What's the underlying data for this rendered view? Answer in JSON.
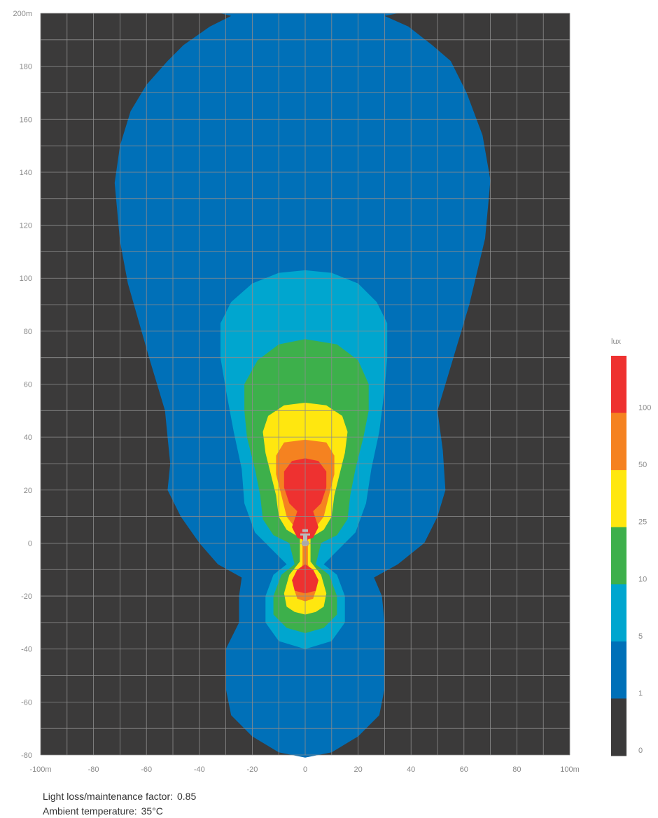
{
  "colors": {
    "background": "#3b3a3a",
    "grid": "#8c8c8c",
    "level_0": "#3b3a3a",
    "level_1": "#0070b8",
    "level_5": "#00a6cf",
    "level_10": "#3db04b",
    "level_25": "#ffe70f",
    "level_50": "#f58220",
    "level_100": "#ee3130",
    "fixture": "#b9b9b9"
  },
  "chart_data": {
    "type": "heatmap",
    "subtype": "isolux contour plot",
    "x_ticks": [
      "-100m",
      "-80",
      "-60",
      "-40",
      "-20",
      "0",
      "20",
      "40",
      "60",
      "80",
      "100m"
    ],
    "y_ticks": [
      "200m",
      "180",
      "160",
      "140",
      "120",
      "100",
      "80",
      "60",
      "40",
      "20",
      "0",
      "-20",
      "-40",
      "-60",
      "-80"
    ],
    "xlim": [
      -100,
      100
    ],
    "ylim": [
      -80,
      200
    ],
    "grid": true,
    "legend": {
      "title": "lux",
      "placement": "right",
      "levels": [
        "0",
        "1",
        "5",
        "10",
        "25",
        "50",
        "100"
      ]
    },
    "contours": [
      {
        "level": 1,
        "points": [
          [
            -32,
            200
          ],
          [
            -28,
            199
          ],
          [
            -36,
            195
          ],
          [
            -46,
            188
          ],
          [
            -52,
            182
          ],
          [
            -60,
            173
          ],
          [
            -66,
            163
          ],
          [
            -70,
            150
          ],
          [
            -72,
            136
          ],
          [
            -70,
            114
          ],
          [
            -67,
            98
          ],
          [
            -59,
            70
          ],
          [
            -53,
            50
          ],
          [
            -52,
            40
          ],
          [
            -51,
            30
          ],
          [
            -52,
            20
          ],
          [
            -47,
            10
          ],
          [
            -40,
            0
          ],
          [
            -33,
            -8
          ],
          [
            -24,
            -13
          ],
          [
            -25,
            -20
          ],
          [
            -25,
            -30
          ],
          [
            -30,
            -40
          ],
          [
            -30,
            -55
          ],
          [
            -28,
            -65
          ],
          [
            -20,
            -73
          ],
          [
            -10,
            -79
          ],
          [
            0,
            -81
          ],
          [
            10,
            -79
          ],
          [
            20,
            -73
          ],
          [
            28,
            -65
          ],
          [
            30,
            -55
          ],
          [
            30,
            -40
          ],
          [
            30,
            -30
          ],
          [
            29,
            -20
          ],
          [
            26,
            -13
          ],
          [
            35,
            -8
          ],
          [
            45,
            0
          ],
          [
            50,
            10
          ],
          [
            53,
            20
          ],
          [
            52,
            35
          ],
          [
            50,
            50
          ],
          [
            56,
            70
          ],
          [
            62,
            90
          ],
          [
            68,
            115
          ],
          [
            70,
            137
          ],
          [
            67,
            154
          ],
          [
            61,
            170
          ],
          [
            55,
            182
          ],
          [
            48,
            188
          ],
          [
            39,
            195
          ],
          [
            30,
            199
          ],
          [
            35,
            200
          ]
        ]
      },
      {
        "level": 5,
        "points": [
          [
            0,
            103
          ],
          [
            -10,
            102
          ],
          [
            -20,
            98
          ],
          [
            -28,
            91
          ],
          [
            -32,
            83
          ],
          [
            -32,
            70
          ],
          [
            -30,
            58
          ],
          [
            -27,
            42
          ],
          [
            -24,
            28
          ],
          [
            -23,
            15
          ],
          [
            -19,
            4
          ],
          [
            -12,
            -3
          ],
          [
            -7,
            -8
          ],
          [
            -12,
            -12
          ],
          [
            -15,
            -20
          ],
          [
            -15,
            -30
          ],
          [
            -10,
            -37
          ],
          [
            0,
            -40
          ],
          [
            10,
            -37
          ],
          [
            15,
            -30
          ],
          [
            15,
            -20
          ],
          [
            12,
            -12
          ],
          [
            7,
            -8
          ],
          [
            12,
            -3
          ],
          [
            19,
            4
          ],
          [
            23,
            15
          ],
          [
            25,
            28
          ],
          [
            28,
            42
          ],
          [
            30,
            58
          ],
          [
            31,
            70
          ],
          [
            31,
            83
          ],
          [
            27,
            91
          ],
          [
            20,
            98
          ],
          [
            10,
            102
          ]
        ]
      },
      {
        "level": 10,
        "points": [
          [
            0,
            77
          ],
          [
            -10,
            75
          ],
          [
            -18,
            69
          ],
          [
            -23,
            60
          ],
          [
            -23,
            50
          ],
          [
            -22,
            40
          ],
          [
            -19,
            28
          ],
          [
            -17,
            18
          ],
          [
            -16,
            9
          ],
          [
            -12,
            3
          ],
          [
            -6,
            0
          ],
          [
            -4,
            -8
          ],
          [
            -9,
            -12
          ],
          [
            -12,
            -20
          ],
          [
            -12,
            -27
          ],
          [
            -7,
            -32
          ],
          [
            0,
            -34
          ],
          [
            7,
            -32
          ],
          [
            12,
            -27
          ],
          [
            12,
            -20
          ],
          [
            9,
            -12
          ],
          [
            4,
            -8
          ],
          [
            6,
            0
          ],
          [
            12,
            3
          ],
          [
            16,
            9
          ],
          [
            17,
            18
          ],
          [
            19,
            28
          ],
          [
            22,
            40
          ],
          [
            24,
            50
          ],
          [
            24,
            60
          ],
          [
            20,
            69
          ],
          [
            12,
            75
          ]
        ]
      },
      {
        "level": 25,
        "points": [
          [
            0,
            53
          ],
          [
            -8,
            52
          ],
          [
            -14,
            48
          ],
          [
            -16,
            42
          ],
          [
            -15,
            34
          ],
          [
            -13,
            26
          ],
          [
            -11,
            18
          ],
          [
            -10,
            10
          ],
          [
            -7,
            5
          ],
          [
            -2,
            2
          ],
          [
            -2,
            -7
          ],
          [
            -6,
            -12
          ],
          [
            -8,
            -19
          ],
          [
            -7,
            -24
          ],
          [
            -4,
            -26
          ],
          [
            0,
            -27
          ],
          [
            4,
            -26
          ],
          [
            7,
            -24
          ],
          [
            8,
            -19
          ],
          [
            6,
            -12
          ],
          [
            2,
            -7
          ],
          [
            2,
            2
          ],
          [
            7,
            5
          ],
          [
            10,
            10
          ],
          [
            11,
            18
          ],
          [
            13,
            26
          ],
          [
            15,
            34
          ],
          [
            16,
            42
          ],
          [
            14,
            48
          ],
          [
            8,
            52
          ]
        ]
      },
      {
        "level": 50,
        "points": [
          [
            0,
            39
          ],
          [
            -8,
            38
          ],
          [
            -11,
            33
          ],
          [
            -11,
            26
          ],
          [
            -9,
            18
          ],
          [
            -7,
            10
          ],
          [
            -4,
            6
          ],
          [
            -1,
            3
          ],
          [
            -1,
            -8
          ],
          [
            -3,
            -13
          ],
          [
            -4,
            -18
          ],
          [
            -3,
            -21
          ],
          [
            0,
            -22
          ],
          [
            3,
            -21
          ],
          [
            4,
            -18
          ],
          [
            3,
            -13
          ],
          [
            1,
            -8
          ],
          [
            1,
            3
          ],
          [
            4,
            6
          ],
          [
            7,
            10
          ],
          [
            9,
            18
          ],
          [
            11,
            26
          ],
          [
            11,
            33
          ],
          [
            8,
            38
          ]
        ]
      },
      {
        "level": 100,
        "points": [
          [
            0,
            32
          ],
          [
            -5,
            31
          ],
          [
            -8,
            27
          ],
          [
            -8,
            21
          ],
          [
            -6,
            15
          ],
          [
            -3,
            12
          ],
          [
            -5,
            6
          ],
          [
            -3,
            2
          ],
          [
            0,
            1
          ],
          [
            3,
            2
          ],
          [
            5,
            6
          ],
          [
            3,
            12
          ],
          [
            6,
            15
          ],
          [
            8,
            21
          ],
          [
            8,
            27
          ],
          [
            5,
            31
          ]
        ]
      },
      {
        "level": 100,
        "points": [
          [
            0,
            -8
          ],
          [
            -3,
            -10
          ],
          [
            -5,
            -14
          ],
          [
            -4,
            -18
          ],
          [
            0,
            -19
          ],
          [
            4,
            -18
          ],
          [
            5,
            -14
          ],
          [
            3,
            -10
          ]
        ]
      }
    ],
    "fixture_position": [
      0,
      1
    ]
  },
  "footer": {
    "llmf_label": "Light loss/maintenance factor:",
    "llmf_value": "0.85",
    "temp_label": "Ambient temperature:",
    "temp_value": "35°C"
  }
}
